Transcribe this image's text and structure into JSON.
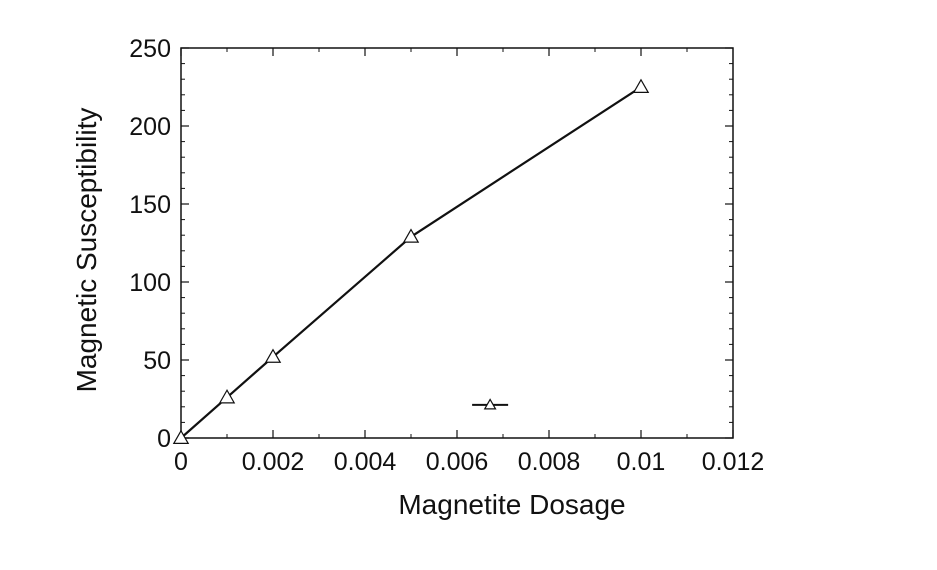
{
  "chart_data": {
    "type": "line",
    "title": "",
    "xlabel": "Magnetite Dosage",
    "ylabel": "Magnetic Susceptibility",
    "xlim": [
      0,
      0.012
    ],
    "ylim": [
      0,
      250
    ],
    "xticks": [
      0,
      0.002,
      0.004,
      0.006,
      0.008,
      0.01,
      0.012
    ],
    "xtick_labels": [
      "0",
      "0.002",
      "0.004",
      "0.006",
      "0.008",
      "0.01",
      "0.012"
    ],
    "yticks": [
      0,
      50,
      100,
      150,
      200,
      250
    ],
    "ytick_labels": [
      "0",
      "50",
      "100",
      "150",
      "200",
      "250"
    ],
    "grid": false,
    "legend": {
      "position": "bottom-center",
      "marker": "triangle",
      "label": ""
    },
    "series": [
      {
        "marker": "triangle",
        "color": "#111111",
        "x": [
          0,
          0.001,
          0.002,
          0.005,
          0.01
        ],
        "y": [
          0,
          26,
          52,
          129,
          225
        ]
      }
    ]
  }
}
